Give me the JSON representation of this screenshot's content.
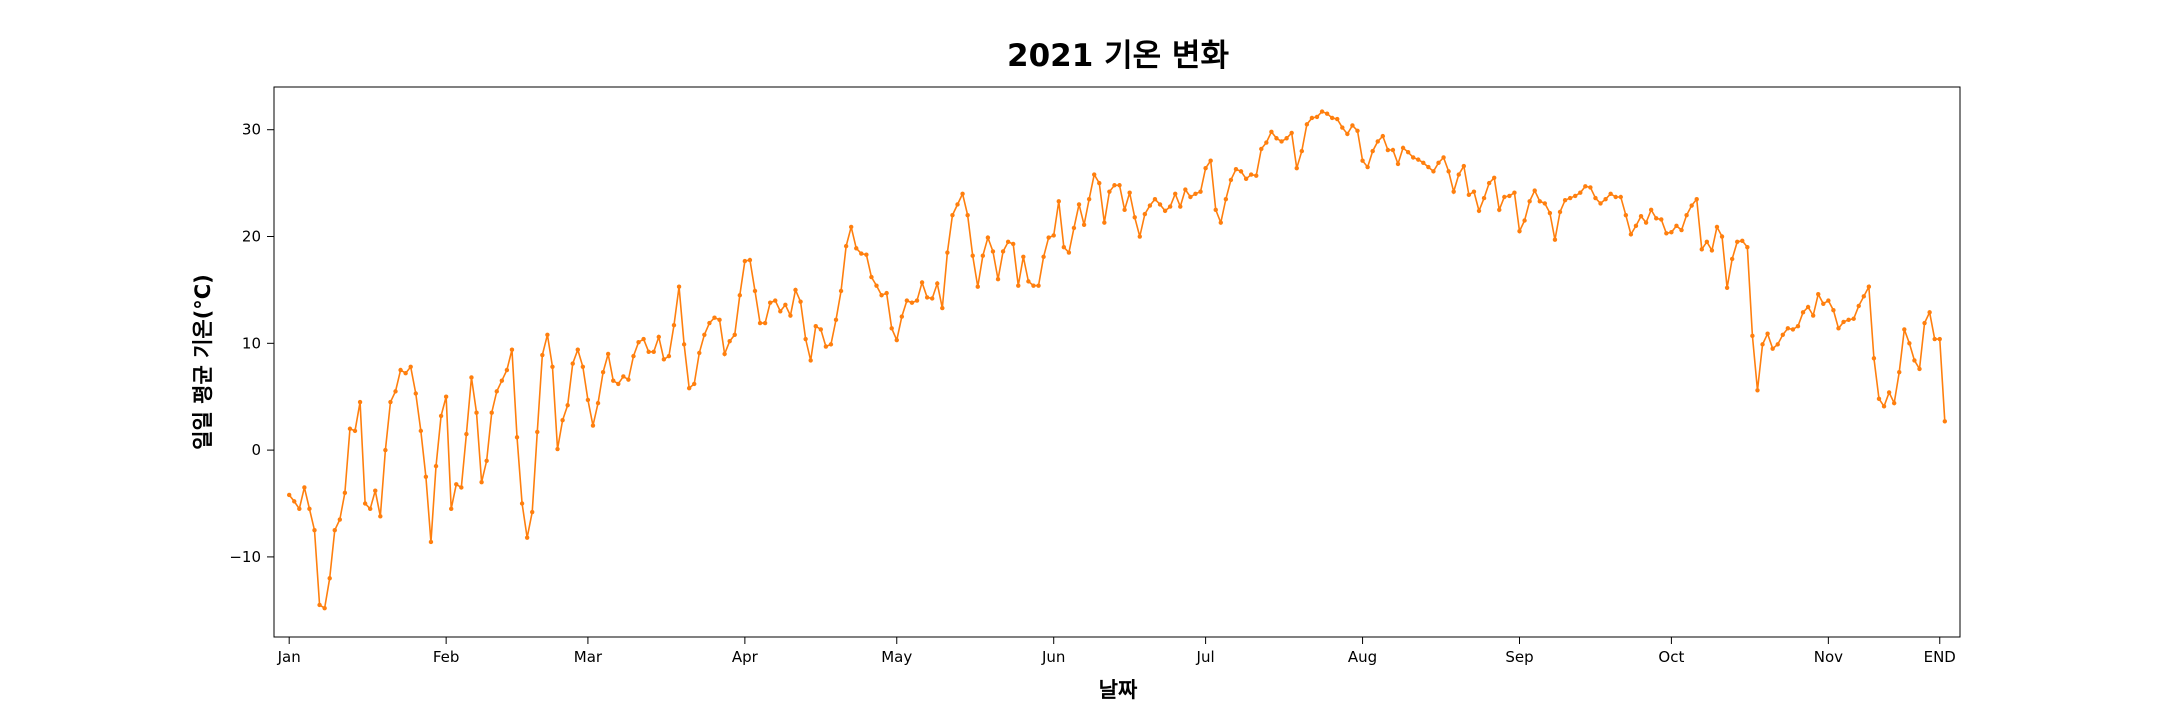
{
  "chart_data": {
    "type": "line",
    "title": "2021 기온 변화",
    "xlabel": "날짜",
    "ylabel": "일일 평균 기온(°C)",
    "line_color": "#ff7f0e",
    "ylim": [
      -17.5,
      34
    ],
    "yticks": [
      {
        "value": -10,
        "label": "−10"
      },
      {
        "value": 0,
        "label": "0"
      },
      {
        "value": 10,
        "label": "10"
      },
      {
        "value": 20,
        "label": "20"
      },
      {
        "value": 30,
        "label": "30"
      }
    ],
    "xticks": [
      {
        "day": 0,
        "label": "Jan"
      },
      {
        "day": 31,
        "label": "Feb"
      },
      {
        "day": 59,
        "label": "Mar"
      },
      {
        "day": 90,
        "label": "Apr"
      },
      {
        "day": 120,
        "label": "May"
      },
      {
        "day": 151,
        "label": "Jun"
      },
      {
        "day": 181,
        "label": "Jul"
      },
      {
        "day": 212,
        "label": "Aug"
      },
      {
        "day": 243,
        "label": "Sep"
      },
      {
        "day": 273,
        "label": "Oct"
      },
      {
        "day": 304,
        "label": "Nov"
      },
      {
        "day": 326,
        "label": "END"
      }
    ],
    "xlim": [
      -3,
      330
    ],
    "values": [
      -4.2,
      -4.8,
      -5.5,
      -3.5,
      -5.5,
      -7.5,
      -14.5,
      -14.8,
      -12.0,
      -7.5,
      -6.5,
      -4.0,
      2.0,
      1.8,
      4.5,
      -5.0,
      -5.5,
      -3.8,
      -6.2,
      0.0,
      4.5,
      5.5,
      7.5,
      7.2,
      7.8,
      5.3,
      1.8,
      -2.5,
      -8.6,
      -1.5,
      3.2,
      5.0,
      -5.5,
      -3.2,
      -3.5,
      1.5,
      6.8,
      3.5,
      -3.0,
      -1.0,
      3.5,
      5.5,
      6.5,
      7.5,
      9.4,
      1.2,
      -5.0,
      -8.2,
      -5.8,
      1.7,
      8.9,
      10.8,
      7.8,
      0.1,
      2.8,
      4.2,
      8.1,
      9.4,
      7.8,
      4.7,
      2.3,
      4.4,
      7.3,
      9.0,
      6.5,
      6.2,
      6.9,
      6.6,
      8.8,
      10.1,
      10.4,
      9.2,
      9.2,
      10.6,
      8.5,
      8.8,
      11.7,
      15.3,
      9.9,
      5.8,
      6.2,
      9.1,
      10.8,
      11.9,
      12.4,
      12.2,
      9.0,
      10.2,
      10.8,
      14.5,
      17.7,
      17.8,
      14.9,
      11.9,
      11.9,
      13.8,
      14.0,
      13.0,
      13.6,
      12.6,
      15.0,
      13.9,
      10.4,
      8.4,
      11.6,
      11.3,
      9.7,
      9.9,
      12.2,
      14.9,
      19.1,
      20.9,
      18.9,
      18.4,
      18.3,
      16.2,
      15.4,
      14.5,
      14.7,
      11.4,
      10.3,
      12.5,
      14.0,
      13.8,
      14.0,
      15.7,
      14.3,
      14.2,
      15.6,
      13.3,
      18.5,
      22.0,
      23.0,
      24.0,
      22.0,
      18.2,
      15.3,
      18.2,
      19.9,
      18.6,
      16.0,
      18.6,
      19.5,
      19.3,
      15.4,
      18.1,
      15.8,
      15.4,
      15.4,
      18.1,
      19.9,
      20.1,
      23.3,
      19.0,
      18.5,
      20.8,
      23.0,
      21.1,
      23.5,
      25.8,
      25.0,
      21.3,
      24.2,
      24.8,
      24.8,
      22.5,
      24.1,
      21.8,
      20.0,
      22.1,
      22.9,
      23.5,
      23.0,
      22.4,
      22.8,
      24.0,
      22.8,
      24.4,
      23.7,
      24.0,
      24.2,
      26.4,
      27.1,
      22.5,
      21.3,
      23.5,
      25.3,
      26.3,
      26.1,
      25.4,
      25.8,
      25.7,
      28.2,
      28.8,
      29.8,
      29.2,
      28.9,
      29.2,
      29.7,
      26.4,
      28.0,
      30.5,
      31.1,
      31.2,
      31.7,
      31.5,
      31.1,
      31.0,
      30.2,
      29.6,
      30.4,
      29.9,
      27.1,
      26.5,
      28.0,
      28.9,
      29.4,
      28.1,
      28.1,
      26.8,
      28.3,
      27.9,
      27.4,
      27.2,
      26.9,
      26.5,
      26.1,
      26.9,
      27.4,
      26.1,
      24.2,
      25.8,
      26.6,
      23.9,
      24.2,
      22.4,
      23.6,
      25.0,
      25.5,
      22.5,
      23.7,
      23.8,
      24.1,
      20.5,
      21.5,
      23.3,
      24.3,
      23.3,
      23.1,
      22.2,
      19.7,
      22.3,
      23.4,
      23.6,
      23.8,
      24.1,
      24.7,
      24.6,
      23.6,
      23.1,
      23.5,
      24.0,
      23.7,
      23.7,
      22.0,
      20.2,
      21.0,
      21.9,
      21.3,
      22.5,
      21.7,
      21.6,
      20.3,
      20.4,
      21.0,
      20.6,
      22.0,
      22.9,
      23.5,
      18.8,
      19.5,
      18.7,
      20.9,
      20.0,
      15.2,
      17.9,
      19.5,
      19.6,
      19.0,
      10.7,
      5.6,
      9.9,
      10.9,
      9.5,
      9.9,
      10.8,
      11.4,
      11.3,
      11.6,
      12.9,
      13.4,
      12.6,
      14.6,
      13.7,
      14.0,
      13.1,
      11.4,
      12.0,
      12.2,
      12.3,
      13.5,
      14.4,
      15.3,
      8.6,
      4.8,
      4.1,
      5.4,
      4.4,
      7.3,
      11.3,
      10.0,
      8.4,
      7.6,
      11.9,
      12.9,
      10.4,
      10.4,
      2.7
    ]
  }
}
